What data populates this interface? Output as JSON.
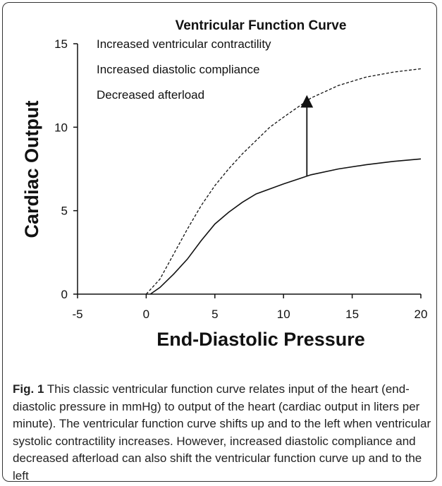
{
  "chart_data": {
    "type": "line",
    "title": "Ventricular Function Curve",
    "xlabel": "End-Diastolic Pressure",
    "ylabel": "Cardiac Output",
    "xlim": [
      -5,
      20
    ],
    "xticks": [
      -5,
      0,
      5,
      10,
      15,
      20
    ],
    "ylim": [
      0,
      15
    ],
    "yticks": [
      0,
      5,
      10,
      15
    ],
    "annotations": [
      "Increased ventricular contractility",
      "Increased diastolic compliance",
      "Decreased afterload"
    ],
    "arrow": {
      "x": 11.7,
      "y_start": 7.1,
      "y_end": 11.8
    },
    "series": [
      {
        "color": "#111111",
        "dashed": false,
        "x": [
          0.3,
          1,
          2,
          3,
          4,
          5,
          6,
          7,
          8,
          9,
          10,
          12,
          14,
          16,
          18,
          20
        ],
        "values": [
          0,
          0.4,
          1.2,
          2.1,
          3.2,
          4.2,
          4.9,
          5.5,
          6.0,
          6.3,
          6.6,
          7.15,
          7.5,
          7.75,
          7.95,
          8.1
        ]
      },
      {
        "color": "#111111",
        "dashed": true,
        "x": [
          0,
          1,
          2,
          3,
          4,
          5,
          6,
          7,
          8,
          9,
          10,
          12,
          14,
          16,
          18,
          20
        ],
        "values": [
          0,
          0.9,
          2.4,
          3.9,
          5.3,
          6.5,
          7.5,
          8.4,
          9.2,
          10.0,
          10.6,
          11.75,
          12.5,
          13.0,
          13.3,
          13.5
        ]
      }
    ]
  },
  "caption": {
    "label": "Fig. 1",
    "text": "This classic ventricular function curve relates input of the heart (end-diastolic pressure in mmHg) to output of the heart (cardiac output in liters per minute). The ventricular function curve shifts up and to the left when ventricular systolic contractility increases. However, increased diastolic compliance and decreased afterload can also shift the ventricular function curve up and to the left"
  }
}
